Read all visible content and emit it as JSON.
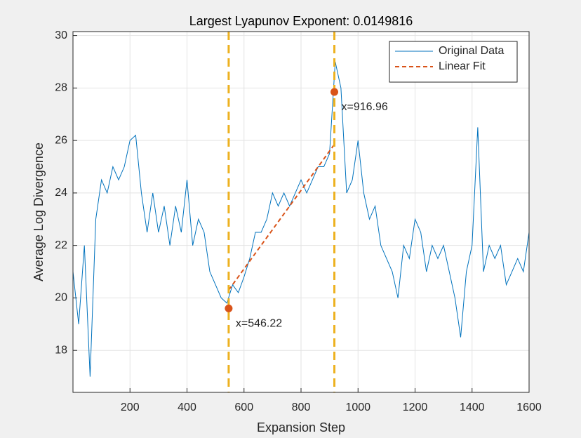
{
  "chart_data": {
    "type": "line",
    "title": "Largest Lyapunov Exponent: 0.0149816",
    "x_label": "Expansion Step",
    "y_label": "Average Log Divergence",
    "xlim": [
      0,
      1600
    ],
    "ylim": [
      16.4,
      30.15
    ],
    "xticks": [
      200,
      400,
      600,
      800,
      1000,
      1200,
      1400,
      1600
    ],
    "yticks": [
      18,
      20,
      22,
      24,
      26,
      28,
      30
    ],
    "grid": true,
    "legend_position": "northeast",
    "series": [
      {
        "name": "Original Data",
        "color": "#0072bd",
        "style": "solid",
        "x": [
          0,
          20,
          40,
          60,
          80,
          100,
          120,
          140,
          160,
          180,
          200,
          220,
          240,
          260,
          280,
          300,
          320,
          340,
          360,
          380,
          400,
          420,
          440,
          460,
          480,
          500,
          520,
          540,
          560,
          580,
          600,
          620,
          640,
          660,
          680,
          700,
          720,
          740,
          760,
          780,
          800,
          820,
          840,
          860,
          880,
          900,
          920,
          940,
          960,
          980,
          1000,
          1020,
          1040,
          1060,
          1080,
          1100,
          1120,
          1140,
          1160,
          1180,
          1200,
          1220,
          1240,
          1260,
          1280,
          1300,
          1320,
          1340,
          1360,
          1380,
          1400,
          1420,
          1440,
          1460,
          1480,
          1500,
          1520,
          1540,
          1560,
          1580,
          1600
        ],
        "values": [
          21,
          19,
          22,
          17,
          23,
          24.5,
          24,
          25,
          24.5,
          25,
          26,
          26.2,
          24,
          22.5,
          24,
          22.5,
          23.5,
          22,
          23.5,
          22.5,
          24.5,
          22,
          23,
          22.5,
          21,
          20.5,
          20,
          19.8,
          20.5,
          20.2,
          20.8,
          21.5,
          22.5,
          22.5,
          23,
          24,
          23.5,
          24,
          23.5,
          24,
          24.5,
          24,
          24.5,
          25,
          25,
          25.5,
          29,
          28,
          24,
          24.5,
          26,
          24,
          23,
          23.5,
          22,
          21.5,
          21,
          20,
          22,
          21.5,
          23,
          22.5,
          21,
          22,
          21.5,
          22,
          21,
          20,
          18.5,
          21,
          22,
          26.5,
          21,
          22,
          21.5,
          22,
          20.5,
          21,
          21.5,
          21,
          22.5
        ]
      },
      {
        "name": "Linear Fit",
        "color": "#d95319",
        "style": "dashed",
        "x": [
          546.22,
          916.96
        ],
        "values": [
          20.3,
          25.85
        ]
      }
    ],
    "markers": [
      {
        "x": 546.22,
        "y": 19.6,
        "label": "x=546.22"
      },
      {
        "x": 916.96,
        "y": 27.85,
        "label": "x=916.96"
      }
    ],
    "marker_color": "#d95319",
    "vline_color": "#edb120"
  }
}
